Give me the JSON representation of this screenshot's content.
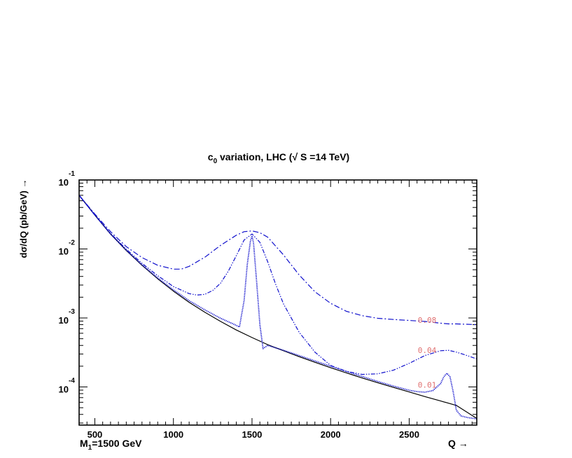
{
  "chart_data": {
    "type": "line",
    "title": "c₀ variation,  LHC (√ S =14 TeV)",
    "title_parts": {
      "c": "c",
      "sub": "0",
      "rest": " variation,  LHC (√ S =14 TeV)"
    },
    "xlabel": "Q →",
    "ylabel": "dσ/dQ (pb/GeV) →",
    "extra_label": {
      "m": "M",
      "sub": "1",
      "rest": "=1500 GeV"
    },
    "x_scale": "linear",
    "y_scale": "log",
    "xlim": [
      400,
      2930
    ],
    "ylim": [
      2.8e-05,
      0.1
    ],
    "x_ticks": [
      500,
      1000,
      1500,
      2000,
      2500
    ],
    "y_ticks": [
      {
        "value": 0.1,
        "base": "10",
        "exp": "-1"
      },
      {
        "value": 0.01,
        "base": "10",
        "exp": "-2"
      },
      {
        "value": 0.001,
        "base": "10",
        "exp": "-3"
      },
      {
        "value": 0.0001,
        "base": "10",
        "exp": "-4"
      }
    ],
    "grid": false,
    "colors": {
      "background": "#ffffff",
      "curve": "#1010cc",
      "bg_curve": "#000000",
      "annotation": "#e07070"
    },
    "annotations": [
      {
        "text": "0.08",
        "x": 2555,
        "y": 0.00085
      },
      {
        "text": "0.04",
        "x": 2555,
        "y": 0.00031
      },
      {
        "text": "0.01",
        "x": 2555,
        "y": 9.8e-05
      }
    ],
    "series": [
      {
        "style": "solid-black",
        "x": [
          400,
          500,
          600,
          700,
          800,
          900,
          1000,
          1100,
          1200,
          1300,
          1400,
          1500,
          1600,
          1700,
          1800,
          1900,
          2000,
          2100,
          2200,
          2300,
          2400,
          2500,
          2600,
          2700,
          2800,
          2930
        ],
        "y": [
          0.06,
          0.031,
          0.0165,
          0.0095,
          0.0058,
          0.0037,
          0.00245,
          0.00168,
          0.00121,
          0.00089,
          0.00067,
          0.00052,
          0.00041,
          0.000335,
          0.000275,
          0.000228,
          0.00019,
          0.00016,
          0.000135,
          0.000115,
          9.85e-05,
          8.45e-05,
          7.25e-05,
          6.25e-05,
          5.4e-05,
          3.5e-05
        ]
      },
      {
        "style": "dotted",
        "x": [
          400,
          500,
          600,
          700,
          800,
          900,
          1000,
          1100,
          1200,
          1300,
          1380,
          1420,
          1450,
          1470,
          1490,
          1500,
          1510,
          1530,
          1550,
          1570,
          1600,
          1700,
          1800,
          1900,
          2000,
          2100,
          2200,
          2300,
          2400,
          2500,
          2550,
          2600,
          2650,
          2700,
          2720,
          2740,
          2760,
          2780,
          2800,
          2830,
          2870,
          2930
        ],
        "y": [
          0.06,
          0.031,
          0.0165,
          0.0096,
          0.0059,
          0.0038,
          0.00255,
          0.00178,
          0.00131,
          0.00099,
          0.00082,
          0.00074,
          0.0018,
          0.006,
          0.013,
          0.0155,
          0.012,
          0.0032,
          0.0008,
          0.00036,
          0.0004,
          0.00034,
          0.000285,
          0.000238,
          0.0002,
          0.000168,
          0.000142,
          0.00012,
          0.000103,
          8.95e-05,
          8.55e-05,
          8.4e-05,
          8.85e-05,
          0.000112,
          0.00014,
          0.000158,
          0.00014,
          8.5e-05,
          4.6e-05,
          3.8e-05,
          3.6e-05,
          3.45e-05
        ]
      },
      {
        "style": "dash-dot-dot",
        "x": [
          400,
          500,
          600,
          700,
          800,
          900,
          1000,
          1100,
          1150,
          1200,
          1250,
          1300,
          1350,
          1400,
          1450,
          1500,
          1550,
          1600,
          1650,
          1700,
          1800,
          1900,
          2000,
          2100,
          2200,
          2300,
          2400,
          2500,
          2600,
          2700,
          2750,
          2800,
          2850,
          2930
        ],
        "y": [
          0.06,
          0.031,
          0.0168,
          0.0099,
          0.0062,
          0.0041,
          0.00285,
          0.00225,
          0.00215,
          0.0022,
          0.0025,
          0.0032,
          0.0048,
          0.008,
          0.0135,
          0.0165,
          0.0125,
          0.0065,
          0.0031,
          0.0016,
          0.00062,
          0.00032,
          0.000205,
          0.000168,
          0.000152,
          0.000155,
          0.000175,
          0.00022,
          0.000285,
          0.000335,
          0.00034,
          0.00032,
          0.000295,
          0.000255
        ]
      },
      {
        "style": "dash-dot",
        "x": [
          400,
          500,
          600,
          700,
          800,
          900,
          1000,
          1050,
          1100,
          1200,
          1300,
          1400,
          1450,
          1500,
          1550,
          1600,
          1700,
          1800,
          1900,
          2000,
          2100,
          2200,
          2300,
          2400,
          2500,
          2600,
          2700,
          2750,
          2800,
          2930
        ],
        "y": [
          0.06,
          0.032,
          0.0178,
          0.0108,
          0.0075,
          0.0058,
          0.0051,
          0.0051,
          0.0056,
          0.0076,
          0.0113,
          0.0158,
          0.0178,
          0.0183,
          0.0172,
          0.0148,
          0.0082,
          0.0042,
          0.0024,
          0.00163,
          0.00125,
          0.00108,
          0.00099,
          0.00095,
          0.00092,
          0.00089,
          0.00084,
          0.00082,
          0.00082,
          0.0008
        ]
      }
    ]
  }
}
